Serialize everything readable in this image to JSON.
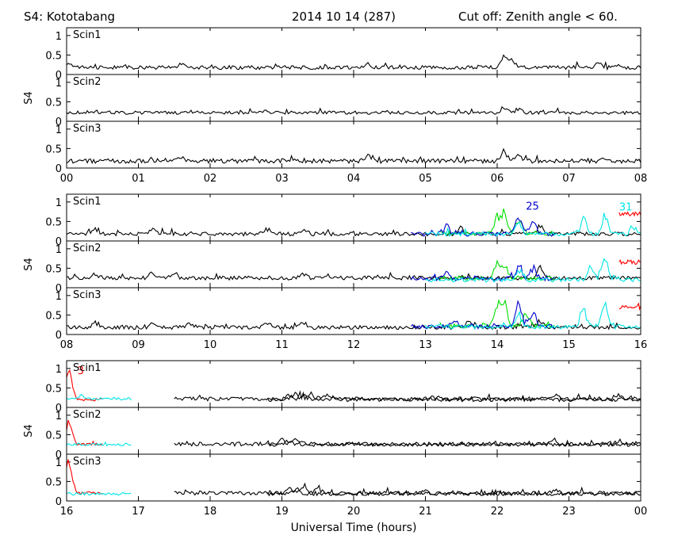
{
  "header": {
    "left": "S4: Kototabang",
    "center": "2014 10 14 (287)",
    "right": "Cut off: Zenith angle < 60."
  },
  "xlabel": "Universal Time (hours)",
  "ylabel": "S4",
  "colors": {
    "black": "#000000",
    "red": "#ff0000",
    "green": "#00dd00",
    "blue": "#0000cc",
    "cyan": "#00e5e5"
  },
  "chart_data": {
    "type": "line",
    "y_ticks": [
      "0",
      "0.5",
      "1"
    ],
    "ylim": [
      0,
      1.2
    ],
    "groups": [
      {
        "x_ticks": [
          "00",
          "01",
          "02",
          "03",
          "04",
          "05",
          "06",
          "07",
          "08"
        ],
        "xlim": [
          0,
          8
        ],
        "panels": [
          {
            "label": "Scin1",
            "series": [
              {
                "color": "black",
                "baseline": 0.18,
                "noise": 0.07,
                "x": [
                  0,
                  8
                ],
                "events": [
                  [
                    0.05,
                    0.1
                  ],
                  [
                    1.6,
                    0.1
                  ],
                  [
                    4.2,
                    0.1
                  ],
                  [
                    6.1,
                    0.25
                  ],
                  [
                    6.2,
                    0.2
                  ],
                  [
                    7.4,
                    0.12
                  ]
                ]
              }
            ]
          },
          {
            "label": "Scin2",
            "series": [
              {
                "color": "black",
                "baseline": 0.22,
                "noise": 0.06,
                "x": [
                  0,
                  8
                ],
                "events": [
                  [
                    6.1,
                    0.15
                  ],
                  [
                    6.3,
                    0.1
                  ]
                ]
              }
            ]
          },
          {
            "label": "Scin3",
            "series": [
              {
                "color": "black",
                "baseline": 0.18,
                "noise": 0.08,
                "x": [
                  0,
                  8
                ],
                "events": [
                  [
                    1.6,
                    0.1
                  ],
                  [
                    4.2,
                    0.12
                  ],
                  [
                    6.1,
                    0.25
                  ],
                  [
                    6.3,
                    0.15
                  ],
                  [
                    7.5,
                    0.1
                  ]
                ]
              }
            ]
          }
        ]
      },
      {
        "x_ticks": [
          "08",
          "09",
          "10",
          "11",
          "12",
          "13",
          "14",
          "15",
          "16"
        ],
        "xlim": [
          8,
          16
        ],
        "panels": [
          {
            "label": "Scin1",
            "annotations": [
              {
                "text": "25",
                "x": 14.4,
                "y": 0.8,
                "color": "blue"
              },
              {
                "text": "31",
                "x": 15.7,
                "y": 0.78,
                "color": "cyan"
              }
            ],
            "series": [
              {
                "color": "black",
                "baseline": 0.18,
                "noise": 0.07,
                "x": [
                  8,
                  16
                ],
                "events": [
                  [
                    8.4,
                    0.12
                  ],
                  [
                    9.2,
                    0.15
                  ],
                  [
                    10.8,
                    0.12
                  ],
                  [
                    11.3,
                    0.1
                  ],
                  [
                    13.5,
                    0.15
                  ],
                  [
                    14.6,
                    0.2
                  ]
                ]
              },
              {
                "color": "green",
                "baseline": 0.2,
                "noise": 0.08,
                "x": [
                  13.2,
                  14.8
                ],
                "events": [
                  [
                    14.0,
                    0.4
                  ],
                  [
                    14.1,
                    0.5
                  ],
                  [
                    14.3,
                    0.35
                  ]
                ]
              },
              {
                "color": "blue",
                "baseline": 0.18,
                "noise": 0.08,
                "x": [
                  12.8,
                  14.8
                ],
                "events": [
                  [
                    13.3,
                    0.2
                  ],
                  [
                    14.3,
                    0.5
                  ],
                  [
                    14.5,
                    0.4
                  ]
                ]
              },
              {
                "color": "cyan",
                "baseline": 0.18,
                "noise": 0.08,
                "x": [
                  13.0,
                  16
                ],
                "events": [
                  [
                    14.3,
                    0.3
                  ],
                  [
                    15.2,
                    0.45
                  ],
                  [
                    15.5,
                    0.5
                  ],
                  [
                    15.9,
                    0.2
                  ]
                ]
              },
              {
                "color": "red",
                "baseline": 0.7,
                "noise": 0.08,
                "x": [
                  15.7,
                  16
                ],
                "events": []
              }
            ]
          },
          {
            "label": "Scin2",
            "series": [
              {
                "color": "black",
                "baseline": 0.25,
                "noise": 0.07,
                "x": [
                  8,
                  16
                ],
                "events": [
                  [
                    8.4,
                    0.12
                  ],
                  [
                    9.2,
                    0.15
                  ],
                  [
                    9.5,
                    0.12
                  ],
                  [
                    11.3,
                    0.12
                  ],
                  [
                    14.6,
                    0.3
                  ]
                ]
              },
              {
                "color": "green",
                "baseline": 0.25,
                "noise": 0.08,
                "x": [
                  13.2,
                  14.8
                ],
                "events": [
                  [
                    14.0,
                    0.35
                  ],
                  [
                    14.1,
                    0.3
                  ]
                ]
              },
              {
                "color": "blue",
                "baseline": 0.23,
                "noise": 0.08,
                "x": [
                  12.8,
                  14.8
                ],
                "events": [
                  [
                    13.3,
                    0.15
                  ],
                  [
                    14.3,
                    0.3
                  ],
                  [
                    14.5,
                    0.25
                  ]
                ]
              },
              {
                "color": "cyan",
                "baseline": 0.2,
                "noise": 0.08,
                "x": [
                  13.0,
                  16
                ],
                "events": [
                  [
                    14.3,
                    0.25
                  ],
                  [
                    15.3,
                    0.4
                  ],
                  [
                    15.5,
                    0.5
                  ]
                ]
              },
              {
                "color": "red",
                "baseline": 0.65,
                "noise": 0.08,
                "x": [
                  15.7,
                  16
                ],
                "events": []
              }
            ]
          },
          {
            "label": "Scin3",
            "series": [
              {
                "color": "black",
                "baseline": 0.18,
                "noise": 0.07,
                "x": [
                  8,
                  16
                ],
                "events": [
                  [
                    8.4,
                    0.1
                  ],
                  [
                    9.2,
                    0.15
                  ],
                  [
                    9.7,
                    0.12
                  ],
                  [
                    10.8,
                    0.12
                  ],
                  [
                    11.3,
                    0.15
                  ],
                  [
                    13.6,
                    0.15
                  ],
                  [
                    14.6,
                    0.2
                  ]
                ]
              },
              {
                "color": "green",
                "baseline": 0.22,
                "noise": 0.08,
                "x": [
                  13.2,
                  14.8
                ],
                "events": [
                  [
                    14.0,
                    0.5
                  ],
                  [
                    14.1,
                    0.55
                  ],
                  [
                    14.4,
                    0.35
                  ]
                ]
              },
              {
                "color": "blue",
                "baseline": 0.2,
                "noise": 0.08,
                "x": [
                  12.8,
                  14.8
                ],
                "events": [
                  [
                    13.4,
                    0.15
                  ],
                  [
                    14.3,
                    0.6
                  ],
                  [
                    14.5,
                    0.4
                  ]
                ]
              },
              {
                "color": "cyan",
                "baseline": 0.2,
                "noise": 0.08,
                "x": [
                  13.0,
                  16
                ],
                "events": [
                  [
                    14.3,
                    0.3
                  ],
                  [
                    15.2,
                    0.45
                  ],
                  [
                    15.5,
                    0.55
                  ]
                ]
              },
              {
                "color": "red",
                "baseline": 0.7,
                "noise": 0.08,
                "x": [
                  15.7,
                  16
                ],
                "events": []
              }
            ]
          }
        ]
      },
      {
        "x_ticks": [
          "16",
          "17",
          "18",
          "19",
          "20",
          "21",
          "22",
          "23",
          "00"
        ],
        "xlim": [
          16,
          24
        ],
        "panels": [
          {
            "label": "Scin1",
            "annotations": [
              {
                "text": "3",
                "x": 16.15,
                "y": 0.85,
                "color": "red"
              }
            ],
            "series": [
              {
                "color": "red",
                "baseline": 0.2,
                "noise": 0.05,
                "x": [
                  16,
                  16.5
                ],
                "events": [
                  [
                    16.02,
                    0.45
                  ],
                  [
                    16.05,
                    0.35
                  ]
                ]
              },
              {
                "color": "cyan",
                "baseline": 0.22,
                "noise": 0.05,
                "x": [
                  16,
                  16.9
                ],
                "events": [
                  [
                    16.2,
                    0.08
                  ]
                ]
              },
              {
                "color": "black",
                "baseline": 0.22,
                "noise": 0.07,
                "x": [
                  17.5,
                  24
                ],
                "events": [
                  [
                    19.2,
                    0.12
                  ],
                  [
                    19.4,
                    0.15
                  ],
                  [
                    19.6,
                    0.1
                  ],
                  [
                    22.8,
                    0.1
                  ],
                  [
                    23.7,
                    0.1
                  ]
                ]
              },
              {
                "color": "black",
                "baseline": 0.2,
                "noise": 0.07,
                "x": [
                  18.8,
                  24
                ],
                "events": [
                  [
                    19.1,
                    0.1
                  ],
                  [
                    19.3,
                    0.12
                  ],
                  [
                    21.1,
                    0.08
                  ]
                ]
              }
            ]
          },
          {
            "label": "Scin2",
            "series": [
              {
                "color": "red",
                "baseline": 0.25,
                "noise": 0.05,
                "x": [
                  16,
                  16.5
                ],
                "events": [
                  [
                    16.02,
                    0.35
                  ],
                  [
                    16.05,
                    0.25
                  ]
                ]
              },
              {
                "color": "cyan",
                "baseline": 0.25,
                "noise": 0.05,
                "x": [
                  16,
                  16.9
                ],
                "events": []
              },
              {
                "color": "black",
                "baseline": 0.26,
                "noise": 0.07,
                "x": [
                  17.5,
                  24
                ],
                "events": [
                  [
                    19.0,
                    0.12
                  ],
                  [
                    19.2,
                    0.15
                  ],
                  [
                    22.8,
                    0.12
                  ],
                  [
                    23.7,
                    0.08
                  ]
                ]
              },
              {
                "color": "black",
                "baseline": 0.24,
                "noise": 0.06,
                "x": [
                  18.8,
                  24
                ],
                "events": [
                  [
                    19.1,
                    0.1
                  ]
                ]
              }
            ]
          },
          {
            "label": "Scin3",
            "series": [
              {
                "color": "red",
                "baseline": 0.2,
                "noise": 0.05,
                "x": [
                  16,
                  16.5
                ],
                "events": [
                  [
                    16.02,
                    0.5
                  ],
                  [
                    16.05,
                    0.35
                  ]
                ]
              },
              {
                "color": "cyan",
                "baseline": 0.18,
                "noise": 0.05,
                "x": [
                  16,
                  16.9
                ],
                "events": []
              },
              {
                "color": "black",
                "baseline": 0.2,
                "noise": 0.07,
                "x": [
                  17.5,
                  24
                ],
                "events": [
                  [
                    19.1,
                    0.15
                  ],
                  [
                    19.3,
                    0.15
                  ],
                  [
                    19.5,
                    0.12
                  ],
                  [
                    22.8,
                    0.1
                  ]
                ]
              },
              {
                "color": "black",
                "baseline": 0.18,
                "noise": 0.06,
                "x": [
                  18.8,
                  24
                ],
                "events": [
                  [
                    19.2,
                    0.12
                  ],
                  [
                    21.0,
                    0.08
                  ]
                ]
              }
            ]
          }
        ]
      }
    ]
  }
}
